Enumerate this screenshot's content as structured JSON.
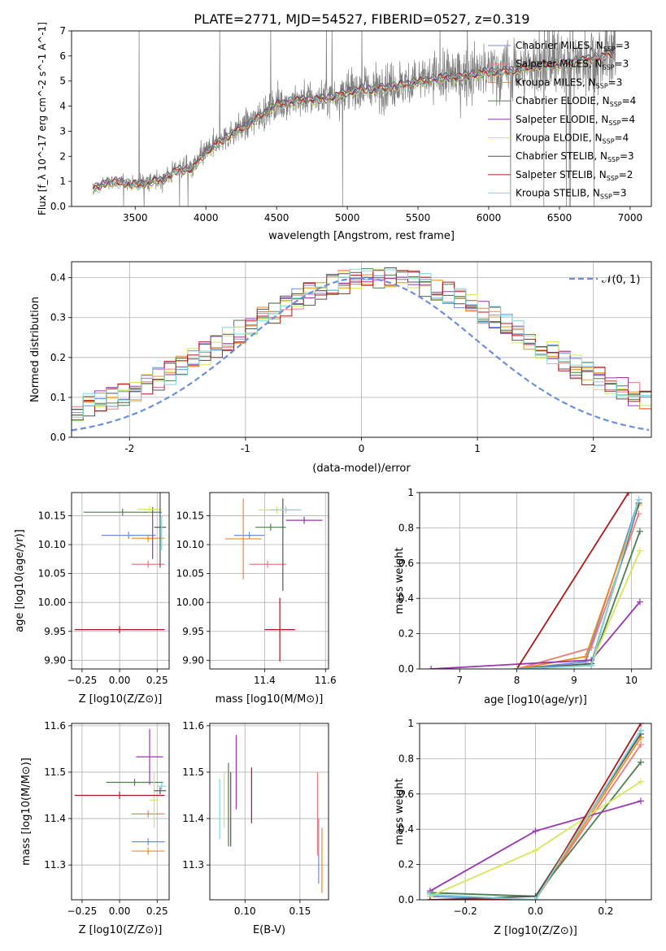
{
  "figure": {
    "title": "PLATE=2771, MJD=54527, FIBERID=0527, z=0.319"
  },
  "series": [
    {
      "name": "Chabrier MILES",
      "nssp": "3",
      "color": "#6c8ede"
    },
    {
      "name": "Salpeter MILES",
      "nssp": "3",
      "color": "#f07a7a"
    },
    {
      "name": "Kroupa MILES",
      "nssp": "3",
      "color": "#f08c1e"
    },
    {
      "name": "Chabrier ELODIE",
      "nssp": "4",
      "color": "#4f7d4f"
    },
    {
      "name": "Salpeter ELODIE",
      "nssp": "4",
      "color": "#9a36b0"
    },
    {
      "name": "Kroupa ELODIE",
      "nssp": "4",
      "color": "#d4e85a"
    },
    {
      "name": "Chabrier STELIB",
      "nssp": "3",
      "color": "#555555"
    },
    {
      "name": "Salpeter STELIB",
      "nssp": "2",
      "color": "#b01818"
    },
    {
      "name": "Kroupa STELIB",
      "nssp": "3",
      "color": "#7ed8d8"
    }
  ],
  "chart_data": [
    {
      "id": "spectrum",
      "type": "line",
      "xlabel": "wavelength [Angstrom, rest frame]",
      "ylabel": "Flux [f_λ 10^-17 erg cm^-2 s^-1 A^-1]",
      "xlim": [
        3050,
        7150
      ],
      "ylim": [
        0,
        7
      ],
      "xticks": [
        3500,
        4000,
        4500,
        5000,
        5500,
        6000,
        6500,
        7000
      ],
      "yticks": [
        0,
        1,
        2,
        3,
        4,
        5,
        6,
        7
      ],
      "grid": false,
      "legend_position": "top-right",
      "model_flux_anchors": {
        "x": [
          3200,
          3300,
          3400,
          3500,
          3600,
          3700,
          3800,
          3900,
          4000,
          4100,
          4200,
          4300,
          4400,
          4500,
          4600,
          4700,
          4800,
          4900,
          5000,
          5100,
          5200,
          5300,
          5400,
          5500,
          5600,
          5700,
          5800,
          5900,
          6000,
          6100,
          6200,
          6300,
          6400,
          6500,
          6600,
          6700,
          6800,
          6900
        ],
        "y": [
          0.7,
          1.0,
          1.0,
          0.9,
          1.0,
          1.1,
          1.5,
          1.5,
          2.2,
          2.6,
          3.0,
          3.3,
          3.7,
          4.1,
          4.2,
          4.3,
          4.3,
          4.4,
          4.6,
          4.7,
          4.7,
          4.8,
          4.9,
          5.0,
          5.1,
          5.2,
          5.2,
          5.3,
          5.4,
          5.4,
          5.5,
          5.6,
          5.7,
          5.7,
          5.8,
          5.9,
          6.0,
          6.2
        ]
      },
      "data_color": "#7f7f7f"
    },
    {
      "id": "residuals",
      "type": "histogram",
      "xlabel": "(data-model)/error",
      "ylabel": "Normed distribution",
      "xlim": [
        -2.5,
        2.5
      ],
      "ylim": [
        0,
        0.44
      ],
      "xticks": [
        -2,
        -1,
        0,
        1,
        2
      ],
      "yticks": [
        0.0,
        0.1,
        0.2,
        0.3,
        0.4
      ],
      "grid": true,
      "reference_curve": {
        "label": "𝒩(0, 1)",
        "mean": 0,
        "sigma": 1,
        "color": "#6c8ede"
      },
      "bin_width": 0.1
    },
    {
      "id": "age-vs-Z",
      "type": "scatter",
      "xlabel": "Z [log10(Z/Z⊙)]",
      "ylabel": "age [log10(age/yr)]",
      "xlim": [
        -0.32,
        0.33
      ],
      "ylim": [
        9.885,
        10.19
      ],
      "xticks": [
        -0.25,
        0.0,
        0.25
      ],
      "xticklabels": [
        "−0.25",
        "0.00",
        "0.25"
      ],
      "yticks": [
        9.9,
        9.95,
        10.0,
        10.05,
        10.1,
        10.15
      ],
      "yticklabels": [
        "9.90",
        "9.95",
        "10.00",
        "10.05",
        "10.10",
        "10.15"
      ],
      "grid": true,
      "points": [
        {
          "s": 0,
          "x": 0.06,
          "xerr": 0.18,
          "y": 10.116,
          "yerr": 0.0
        },
        {
          "s": 1,
          "x": 0.19,
          "xerr": 0.11,
          "y": 10.066,
          "yerr": 0.0
        },
        {
          "s": 2,
          "x": 0.19,
          "xerr": 0.11,
          "y": 10.111,
          "yerr": 0.0
        },
        {
          "s": 3,
          "x": 0.02,
          "xerr": 0.26,
          "y": 10.156,
          "yerr": 0.0
        },
        {
          "s": 4,
          "x": 0.22,
          "xerr": 0.0,
          "y": 10.12,
          "yerr": 0.045
        },
        {
          "s": 5,
          "x": 0.2,
          "xerr": 0.08,
          "y": 10.161,
          "yerr": 0.0
        },
        {
          "s": 6,
          "x": 0.27,
          "xerr": 0.04,
          "y": 10.13,
          "yerr": 0.07
        },
        {
          "s": 7,
          "x": 0.0,
          "xerr": 0.3,
          "y": 9.953,
          "yerr": 0.0
        },
        {
          "s": 8,
          "x": 0.28,
          "xerr": 0.0,
          "y": 10.12,
          "yerr": 0.03
        }
      ]
    },
    {
      "id": "age-vs-mass",
      "type": "scatter",
      "xlabel": "mass [log10(M/M⊙)]",
      "ylabel": "",
      "xlim": [
        11.22,
        11.61
      ],
      "ylim": [
        9.885,
        10.19
      ],
      "xticks": [
        11.4,
        11.6
      ],
      "yticks": [
        9.9,
        9.95,
        10.0,
        10.05,
        10.1,
        10.15
      ],
      "yticklabels": [
        "9.90",
        "9.95",
        "10.00",
        "10.05",
        "10.10",
        "10.15"
      ],
      "grid": true,
      "points": [
        {
          "s": 0,
          "x": 11.35,
          "xerr": 0.05,
          "y": 10.116,
          "yerr": 0.0
        },
        {
          "s": 1,
          "x": 11.41,
          "xerr": 0.06,
          "y": 10.066,
          "yerr": 0.0
        },
        {
          "s": 2,
          "x": 11.33,
          "xerr": 0.06,
          "y": 10.11,
          "yerr": 0.07
        },
        {
          "s": 3,
          "x": 11.42,
          "xerr": 0.05,
          "y": 10.13,
          "yerr": 0.0
        },
        {
          "s": 4,
          "x": 11.53,
          "xerr": 0.06,
          "y": 10.142,
          "yerr": 0.0
        },
        {
          "s": 5,
          "x": 11.44,
          "xerr": 0.06,
          "y": 10.16,
          "yerr": 0.0
        },
        {
          "s": 6,
          "x": 11.46,
          "xerr": 0.0,
          "y": 10.1,
          "yerr": 0.08
        },
        {
          "s": 7,
          "x": 11.45,
          "xerr": 0.05,
          "y": 9.953,
          "yerr": 0.055
        },
        {
          "s": 8,
          "x": 11.47,
          "xerr": 0.05,
          "y": 10.16,
          "yerr": 0.0
        }
      ]
    },
    {
      "id": "massweight-vs-age",
      "type": "line",
      "xlabel": "age [log10(age/yr)]",
      "ylabel": "mass weight",
      "xlim": [
        6.3,
        10.35
      ],
      "ylim": [
        0,
        1
      ],
      "xticks": [
        7,
        8,
        9,
        10
      ],
      "yticks": [
        0.0,
        0.2,
        0.4,
        0.6,
        0.8,
        1.0
      ],
      "grid": true,
      "lines": [
        {
          "s": 0,
          "x": [
            8.0,
            9.2,
            10.13
          ],
          "y": [
            0.0,
            0.04,
            0.96
          ]
        },
        {
          "s": 1,
          "x": [
            8.0,
            9.3,
            10.13
          ],
          "y": [
            0.0,
            0.12,
            0.88
          ]
        },
        {
          "s": 2,
          "x": [
            8.0,
            9.2,
            10.13
          ],
          "y": [
            0.0,
            0.07,
            0.93
          ]
        },
        {
          "s": 3,
          "x": [
            8.0,
            9.3,
            10.15
          ],
          "y": [
            0.0,
            0.02,
            0.78
          ]
        },
        {
          "s": 4,
          "x": [
            6.5,
            9.3,
            10.15
          ],
          "y": [
            0.0,
            0.05,
            0.38
          ]
        },
        {
          "s": 5,
          "x": [
            8.0,
            9.3,
            10.15
          ],
          "y": [
            0.0,
            0.03,
            0.67
          ]
        },
        {
          "s": 6,
          "x": [
            8.0,
            9.3,
            10.13
          ],
          "y": [
            0.0,
            0.03,
            0.94
          ]
        },
        {
          "s": 7,
          "x": [
            8.0,
            9.95
          ],
          "y": [
            0.0,
            1.0
          ]
        },
        {
          "s": 8,
          "x": [
            8.0,
            9.3,
            10.13
          ],
          "y": [
            0.0,
            0.02,
            0.96
          ]
        }
      ]
    },
    {
      "id": "mass-vs-Z",
      "type": "scatter",
      "xlabel": "Z [log10(Z/Z⊙)]",
      "ylabel": "mass [log10(M/M⊙)]",
      "xlim": [
        -0.32,
        0.33
      ],
      "ylim": [
        11.225,
        11.605
      ],
      "xticks": [
        -0.25,
        0.0,
        0.25
      ],
      "xticklabels": [
        "−0.25",
        "0.00",
        "0.25"
      ],
      "yticks": [
        11.3,
        11.4,
        11.5,
        11.6
      ],
      "grid": true,
      "points": [
        {
          "s": 0,
          "x": 0.19,
          "xerr": 0.11,
          "y": 11.35,
          "yerr": 0.0
        },
        {
          "s": 1,
          "x": 0.19,
          "xerr": 0.11,
          "y": 11.41,
          "yerr": 0.0
        },
        {
          "s": 2,
          "x": 0.19,
          "xerr": 0.11,
          "y": 11.33,
          "yerr": 0.0
        },
        {
          "s": 3,
          "x": 0.1,
          "xerr": 0.19,
          "y": 11.478,
          "yerr": 0.0
        },
        {
          "s": 4,
          "x": 0.2,
          "xerr": 0.09,
          "y": 11.533,
          "yerr": 0.06
        },
        {
          "s": 5,
          "x": 0.23,
          "xerr": 0.03,
          "y": 11.44,
          "yerr": 0.06
        },
        {
          "s": 6,
          "x": 0.27,
          "xerr": 0.04,
          "y": 11.46,
          "yerr": 0.0
        },
        {
          "s": 7,
          "x": 0.0,
          "xerr": 0.3,
          "y": 11.45,
          "yerr": 0.0
        },
        {
          "s": 8,
          "x": 0.28,
          "xerr": 0.03,
          "y": 11.47,
          "yerr": 0.0
        }
      ]
    },
    {
      "id": "mass-vs-ebv",
      "type": "scatter",
      "xlabel": "E(B-V)",
      "ylabel": "",
      "xlim": [
        0.068,
        0.176
      ],
      "ylim": [
        11.225,
        11.605
      ],
      "xticks": [
        0.1,
        0.15
      ],
      "xticklabels": [
        "0.10",
        "0.15"
      ],
      "yticks": [
        11.3,
        11.4,
        11.5,
        11.6
      ],
      "grid": true,
      "points": [
        {
          "s": 0,
          "x": 0.167,
          "xerr": 0.0,
          "y": 11.33,
          "yerr": 0.07
        },
        {
          "s": 1,
          "x": 0.166,
          "xerr": 0.0,
          "y": 11.41,
          "yerr": 0.09
        },
        {
          "s": 2,
          "x": 0.17,
          "xerr": 0.0,
          "y": 11.31,
          "yerr": 0.07
        },
        {
          "s": 3,
          "x": 0.085,
          "xerr": 0.0,
          "y": 11.43,
          "yerr": 0.09
        },
        {
          "s": 4,
          "x": 0.092,
          "xerr": 0.0,
          "y": 11.5,
          "yerr": 0.08
        },
        {
          "s": 5,
          "x": 0.081,
          "xerr": 0.0,
          "y": 11.44,
          "yerr": 0.06
        },
        {
          "s": 6,
          "x": 0.087,
          "xerr": 0.0,
          "y": 11.42,
          "yerr": 0.08
        },
        {
          "s": 7,
          "x": 0.106,
          "xerr": 0.0,
          "y": 11.45,
          "yerr": 0.06
        },
        {
          "s": 8,
          "x": 0.077,
          "xerr": 0.0,
          "y": 11.42,
          "yerr": 0.065
        }
      ]
    },
    {
      "id": "massweight-vs-Z",
      "type": "line",
      "xlabel": "Z [log10(Z/Z⊙)]",
      "ylabel": "mass weight",
      "xlim": [
        -0.33,
        0.33
      ],
      "ylim": [
        0,
        1
      ],
      "xticks": [
        -0.2,
        0.0,
        0.2
      ],
      "xticklabels": [
        "−0.2",
        "0.0",
        "0.2"
      ],
      "yticks": [
        0.0,
        0.2,
        0.4,
        0.6,
        0.8,
        1.0
      ],
      "grid": true,
      "lines": [
        {
          "s": 0,
          "x": [
            -0.3,
            0.0,
            0.3
          ],
          "y": [
            0.02,
            0.0,
            0.96
          ]
        },
        {
          "s": 1,
          "x": [
            -0.3,
            0.0,
            0.3
          ],
          "y": [
            0.0,
            0.0,
            0.88
          ]
        },
        {
          "s": 2,
          "x": [
            -0.3,
            0.0,
            0.3
          ],
          "y": [
            0.0,
            0.0,
            0.92
          ]
        },
        {
          "s": 3,
          "x": [
            -0.3,
            0.0,
            0.3
          ],
          "y": [
            0.04,
            0.02,
            0.78
          ]
        },
        {
          "s": 4,
          "x": [
            -0.3,
            0.0,
            0.3
          ],
          "y": [
            0.05,
            0.39,
            0.56
          ]
        },
        {
          "s": 5,
          "x": [
            -0.3,
            0.0,
            0.3
          ],
          "y": [
            0.02,
            0.28,
            0.67
          ]
        },
        {
          "s": 6,
          "x": [
            -0.3,
            0.0,
            0.3
          ],
          "y": [
            0.0,
            0.02,
            0.94
          ]
        },
        {
          "s": 7,
          "x": [
            -0.3,
            0.0,
            0.3
          ],
          "y": [
            0.0,
            0.0,
            1.0
          ]
        },
        {
          "s": 8,
          "x": [
            -0.3,
            0.0,
            0.3
          ],
          "y": [
            0.03,
            0.0,
            0.96
          ]
        }
      ]
    }
  ]
}
